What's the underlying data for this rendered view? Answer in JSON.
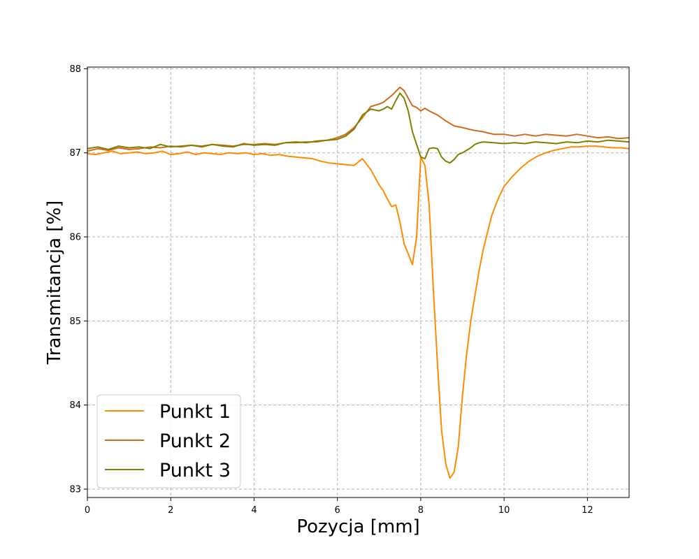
{
  "chart_data": {
    "type": "line",
    "xlabel": "Pozycja [mm]",
    "ylabel": "Transmitancja [%]",
    "xlim": [
      0,
      13
    ],
    "ylim": [
      82.9,
      88.02
    ],
    "x_ticks": [
      0,
      2,
      4,
      6,
      8,
      10,
      12
    ],
    "y_ticks": [
      83,
      84,
      85,
      86,
      87,
      88
    ],
    "grid": true,
    "legend_position": "lower-left",
    "series": [
      {
        "name": "Punkt 1",
        "color": "#ff8c00",
        "x": [
          0,
          0.2,
          0.4,
          0.6,
          0.8,
          1,
          1.2,
          1.4,
          1.6,
          1.8,
          2,
          2.2,
          2.4,
          2.6,
          2.8,
          3,
          3.2,
          3.4,
          3.6,
          3.8,
          4,
          4.2,
          4.4,
          4.6,
          4.8,
          5,
          5.2,
          5.4,
          5.6,
          5.8,
          6,
          6.2,
          6.4,
          6.6,
          6.8,
          7,
          7.1,
          7.2,
          7.3,
          7.4,
          7.5,
          7.6,
          7.7,
          7.8,
          7.9,
          8,
          8.1,
          8.2,
          8.3,
          8.4,
          8.5,
          8.6,
          8.7,
          8.8,
          8.9,
          9,
          9.1,
          9.2,
          9.3,
          9.4,
          9.5,
          9.6,
          9.7,
          9.8,
          9.9,
          10,
          10.2,
          10.4,
          10.6,
          10.8,
          11,
          11.2,
          11.4,
          11.6,
          11.8,
          12,
          12.2,
          12.4,
          12.6,
          12.8,
          13
        ],
        "y": [
          86.99,
          86.98,
          87.0,
          87.02,
          86.99,
          87.0,
          87.01,
          86.99,
          87.0,
          87.02,
          86.98,
          86.99,
          87.01,
          86.98,
          87.0,
          86.99,
          86.98,
          87.0,
          86.99,
          87.0,
          86.98,
          86.99,
          86.97,
          86.98,
          86.96,
          86.95,
          86.94,
          86.93,
          86.9,
          86.88,
          86.87,
          86.86,
          86.85,
          86.93,
          86.8,
          86.62,
          86.55,
          86.45,
          86.36,
          86.38,
          86.18,
          85.92,
          85.8,
          85.67,
          86.0,
          86.95,
          86.85,
          86.4,
          85.4,
          84.5,
          83.7,
          83.3,
          83.13,
          83.2,
          83.5,
          84.1,
          84.6,
          85.0,
          85.3,
          85.6,
          85.85,
          86.05,
          86.25,
          86.38,
          86.5,
          86.6,
          86.72,
          86.82,
          86.9,
          86.96,
          87.0,
          87.03,
          87.05,
          87.07,
          87.07,
          87.08,
          87.08,
          87.07,
          87.06,
          87.06,
          87.05
        ]
      },
      {
        "name": "Punkt 2",
        "color": "#d2691e",
        "x": [
          0,
          0.25,
          0.5,
          0.75,
          1,
          1.25,
          1.5,
          1.75,
          2,
          2.25,
          2.5,
          2.75,
          3,
          3.25,
          3.5,
          3.75,
          4,
          4.25,
          4.5,
          4.75,
          5,
          5.25,
          5.5,
          5.75,
          6,
          6.2,
          6.4,
          6.6,
          6.8,
          7,
          7.1,
          7.2,
          7.3,
          7.4,
          7.5,
          7.6,
          7.7,
          7.8,
          7.9,
          8,
          8.1,
          8.2,
          8.4,
          8.6,
          8.8,
          9,
          9.25,
          9.5,
          9.75,
          10,
          10.25,
          10.5,
          10.75,
          11,
          11.25,
          11.5,
          11.75,
          12,
          12.25,
          12.5,
          12.75,
          13
        ],
        "y": [
          87.02,
          87.05,
          87.03,
          87.06,
          87.04,
          87.05,
          87.07,
          87.06,
          87.08,
          87.07,
          87.09,
          87.08,
          87.1,
          87.09,
          87.08,
          87.1,
          87.1,
          87.11,
          87.1,
          87.12,
          87.12,
          87.13,
          87.13,
          87.15,
          87.18,
          87.22,
          87.3,
          87.42,
          87.55,
          87.58,
          87.6,
          87.64,
          87.68,
          87.73,
          87.78,
          87.74,
          87.65,
          87.56,
          87.54,
          87.5,
          87.53,
          87.5,
          87.45,
          87.38,
          87.32,
          87.3,
          87.27,
          87.25,
          87.22,
          87.22,
          87.2,
          87.22,
          87.2,
          87.22,
          87.21,
          87.2,
          87.22,
          87.2,
          87.18,
          87.19,
          87.17,
          87.18
        ]
      },
      {
        "name": "Punkt 3",
        "color": "#808000",
        "x": [
          0,
          0.25,
          0.5,
          0.75,
          1,
          1.25,
          1.5,
          1.75,
          2,
          2.25,
          2.5,
          2.75,
          3,
          3.25,
          3.5,
          3.75,
          4,
          4.25,
          4.5,
          4.75,
          5,
          5.25,
          5.5,
          5.75,
          6,
          6.2,
          6.4,
          6.6,
          6.8,
          7,
          7.1,
          7.2,
          7.3,
          7.4,
          7.5,
          7.6,
          7.7,
          7.8,
          7.9,
          8,
          8.1,
          8.2,
          8.3,
          8.4,
          8.5,
          8.6,
          8.7,
          8.8,
          8.9,
          9,
          9.1,
          9.2,
          9.3,
          9.4,
          9.5,
          9.75,
          10,
          10.25,
          10.5,
          10.75,
          11,
          11.25,
          11.5,
          11.75,
          12,
          12.25,
          12.5,
          12.75,
          13
        ],
        "y": [
          87.05,
          87.07,
          87.04,
          87.08,
          87.06,
          87.07,
          87.05,
          87.1,
          87.07,
          87.08,
          87.09,
          87.07,
          87.1,
          87.08,
          87.07,
          87.11,
          87.09,
          87.1,
          87.09,
          87.12,
          87.13,
          87.12,
          87.14,
          87.15,
          87.16,
          87.2,
          87.28,
          87.45,
          87.52,
          87.5,
          87.52,
          87.55,
          87.52,
          87.62,
          87.71,
          87.65,
          87.5,
          87.25,
          87.1,
          86.95,
          86.93,
          87.05,
          87.06,
          87.05,
          86.95,
          86.9,
          86.88,
          86.92,
          86.98,
          87.0,
          87.03,
          87.06,
          87.1,
          87.12,
          87.13,
          87.12,
          87.11,
          87.12,
          87.11,
          87.13,
          87.12,
          87.11,
          87.13,
          87.12,
          87.14,
          87.13,
          87.15,
          87.14,
          87.13
        ]
      }
    ]
  }
}
